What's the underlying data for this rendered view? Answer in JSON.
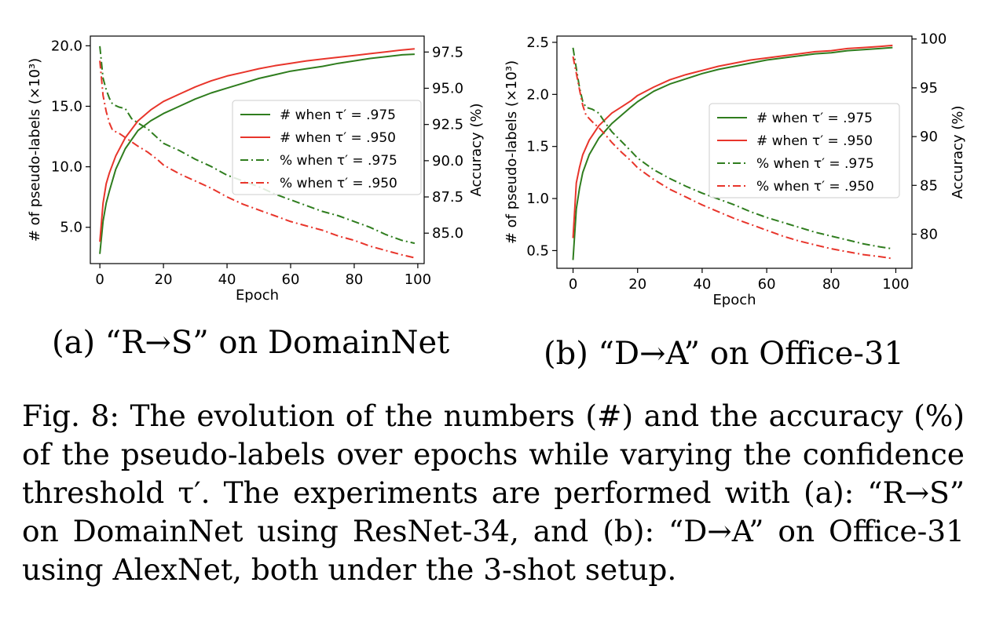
{
  "subcaptions": {
    "a": "(a) “R→S” on DomainNet",
    "b": "(b) “D→A” on Office-31"
  },
  "figure_caption": "Fig. 8: The evolution of the numbers (#) and the accuracy (%) of the pseudo-labels over epochs while varying the confidence threshold τ′. The experiments are performed with (a): “R→S” on DomainNet using ResNet-34, and (b): “D→A” on Office-31 using AlexNet, both under the 3-shot setup.",
  "chart_data": [
    {
      "type": "line",
      "xlabel": "Epoch",
      "ylabel": "# of pseudo-labels (×10³)",
      "y2label": "Accuracy (%)",
      "xlim": [
        -3,
        102
      ],
      "ylim": [
        2.0,
        20.8
      ],
      "y2lim": [
        82.9,
        98.6
      ],
      "xticks": [
        0,
        20,
        40,
        60,
        80,
        100
      ],
      "yticks": [
        5.0,
        10.0,
        15.0,
        20.0
      ],
      "y2ticks": [
        85.0,
        87.5,
        90.0,
        92.5,
        95.0,
        97.5
      ],
      "xtick_labels": [
        "0",
        "20",
        "40",
        "60",
        "80",
        "100"
      ],
      "ytick_labels": [
        "5.0",
        "10.0",
        "15.0",
        "20.0"
      ],
      "y2tick_labels": [
        "85.0",
        "87.5",
        "90.0",
        "92.5",
        "95.0",
        "97.5"
      ],
      "legend_position": "center-right",
      "grid": false,
      "series": [
        {
          "name": "# when τ′ = .975",
          "axis": "left",
          "style": "solid",
          "color": "#2f7d1e",
          "x": [
            0,
            1,
            2,
            3,
            5,
            8,
            12,
            16,
            20,
            25,
            30,
            35,
            40,
            45,
            50,
            55,
            60,
            65,
            70,
            75,
            80,
            85,
            90,
            95,
            99
          ],
          "y": [
            2.8,
            5.5,
            7.0,
            8.0,
            9.8,
            11.5,
            13.0,
            13.8,
            14.4,
            15.0,
            15.6,
            16.1,
            16.5,
            16.9,
            17.3,
            17.6,
            17.9,
            18.1,
            18.3,
            18.55,
            18.75,
            18.95,
            19.1,
            19.25,
            19.3
          ]
        },
        {
          "name": "# when τ′ = .950",
          "axis": "left",
          "style": "solid",
          "color": "#e8352b",
          "x": [
            0,
            1,
            2,
            3,
            5,
            8,
            12,
            16,
            20,
            25,
            30,
            35,
            40,
            45,
            50,
            55,
            60,
            65,
            70,
            75,
            80,
            85,
            90,
            95,
            99
          ],
          "y": [
            3.8,
            7.0,
            8.6,
            9.5,
            10.9,
            12.4,
            13.8,
            14.7,
            15.4,
            16.0,
            16.6,
            17.1,
            17.5,
            17.8,
            18.1,
            18.35,
            18.55,
            18.75,
            18.9,
            19.05,
            19.2,
            19.35,
            19.5,
            19.65,
            19.75
          ]
        },
        {
          "name": "% when τ′ = .975",
          "axis": "right",
          "style": "dashdot",
          "color": "#2f7d1e",
          "x": [
            0,
            1,
            2,
            3,
            4,
            6,
            8,
            10,
            12,
            15,
            18,
            20,
            25,
            30,
            35,
            40,
            45,
            50,
            55,
            60,
            65,
            70,
            75,
            80,
            85,
            90,
            95,
            99
          ],
          "y": [
            97.9,
            95.7,
            94.9,
            94.3,
            93.9,
            93.7,
            93.6,
            92.9,
            92.6,
            92.2,
            91.6,
            91.2,
            90.7,
            90.1,
            89.6,
            89.0,
            88.6,
            88.2,
            87.7,
            87.3,
            86.9,
            86.5,
            86.2,
            85.8,
            85.4,
            84.9,
            84.5,
            84.3
          ]
        },
        {
          "name": "% when τ′ = .950",
          "axis": "right",
          "style": "dashdot",
          "color": "#e8352b",
          "x": [
            0,
            1,
            2,
            3,
            4,
            6,
            8,
            10,
            12,
            15,
            18,
            20,
            25,
            30,
            35,
            40,
            45,
            50,
            55,
            60,
            65,
            70,
            75,
            80,
            85,
            90,
            95,
            99
          ],
          "y": [
            96.9,
            94.5,
            93.4,
            92.6,
            92.1,
            91.9,
            91.6,
            91.3,
            91.0,
            90.6,
            90.1,
            89.7,
            89.1,
            88.6,
            88.1,
            87.5,
            87.0,
            86.6,
            86.2,
            85.8,
            85.5,
            85.2,
            84.8,
            84.5,
            84.1,
            83.8,
            83.5,
            83.3
          ]
        }
      ]
    },
    {
      "type": "line",
      "xlabel": "Epoch",
      "ylabel": "# of pseudo-labels (×10³)",
      "y2label": "Accuracy (%)",
      "xlim": [
        -5,
        105
      ],
      "ylim": [
        0.33,
        2.56
      ],
      "y2lim": [
        76.5,
        100.3
      ],
      "xticks": [
        0,
        20,
        40,
        60,
        80,
        100
      ],
      "yticks": [
        0.5,
        1.0,
        1.5,
        2.0,
        2.5
      ],
      "y2ticks": [
        80,
        85,
        90,
        95,
        100
      ],
      "xtick_labels": [
        "0",
        "20",
        "40",
        "60",
        "80",
        "100"
      ],
      "ytick_labels": [
        "0.5",
        "1.0",
        "1.5",
        "2.0",
        "2.5"
      ],
      "y2tick_labels": [
        "80",
        "85",
        "90",
        "95",
        "100"
      ],
      "legend_position": "center-right",
      "grid": false,
      "series": [
        {
          "name": "# when τ′ = .975",
          "axis": "left",
          "style": "solid",
          "color": "#2f7d1e",
          "x": [
            0,
            1,
            2,
            3,
            5,
            8,
            10,
            12,
            15,
            18,
            20,
            25,
            30,
            35,
            40,
            45,
            50,
            55,
            60,
            65,
            70,
            75,
            80,
            85,
            90,
            95,
            99
          ],
          "y": [
            0.41,
            0.9,
            1.1,
            1.25,
            1.42,
            1.58,
            1.65,
            1.72,
            1.8,
            1.88,
            1.93,
            2.03,
            2.1,
            2.15,
            2.2,
            2.24,
            2.27,
            2.3,
            2.33,
            2.35,
            2.37,
            2.39,
            2.4,
            2.42,
            2.43,
            2.44,
            2.45
          ]
        },
        {
          "name": "# when τ′ = .950",
          "axis": "left",
          "style": "solid",
          "color": "#e8352b",
          "x": [
            0,
            1,
            2,
            3,
            5,
            8,
            10,
            12,
            15,
            18,
            20,
            25,
            30,
            35,
            40,
            45,
            50,
            55,
            60,
            65,
            70,
            75,
            80,
            85,
            90,
            95,
            99
          ],
          "y": [
            0.62,
            1.15,
            1.3,
            1.42,
            1.56,
            1.7,
            1.76,
            1.82,
            1.88,
            1.94,
            1.99,
            2.07,
            2.14,
            2.19,
            2.23,
            2.27,
            2.3,
            2.33,
            2.35,
            2.37,
            2.39,
            2.41,
            2.42,
            2.44,
            2.45,
            2.46,
            2.47
          ]
        },
        {
          "name": "% when τ′ = .975",
          "axis": "right",
          "style": "dashdot",
          "color": "#2f7d1e",
          "x": [
            0,
            1,
            2,
            3,
            4,
            6,
            8,
            10,
            12,
            15,
            18,
            20,
            25,
            30,
            35,
            40,
            45,
            50,
            55,
            60,
            65,
            70,
            75,
            80,
            85,
            90,
            95,
            99
          ],
          "y": [
            99.1,
            97.0,
            95.0,
            93.6,
            93.0,
            92.8,
            92.4,
            91.4,
            90.5,
            89.5,
            88.5,
            87.8,
            86.6,
            85.7,
            84.9,
            84.2,
            83.6,
            83.0,
            82.3,
            81.7,
            81.2,
            80.7,
            80.2,
            79.8,
            79.4,
            79.0,
            78.7,
            78.5
          ]
        },
        {
          "name": "% when τ′ = .950",
          "axis": "right",
          "style": "dashdot",
          "color": "#e8352b",
          "x": [
            0,
            1,
            2,
            3,
            4,
            6,
            8,
            10,
            12,
            15,
            18,
            20,
            25,
            30,
            35,
            40,
            45,
            50,
            55,
            60,
            65,
            70,
            75,
            80,
            85,
            90,
            95,
            99
          ],
          "y": [
            98.2,
            96.5,
            94.8,
            93.2,
            92.2,
            91.5,
            90.9,
            90.2,
            89.4,
            88.4,
            87.5,
            86.8,
            85.6,
            84.6,
            83.8,
            83.0,
            82.3,
            81.6,
            81.0,
            80.4,
            79.8,
            79.3,
            78.9,
            78.5,
            78.2,
            77.9,
            77.7,
            77.5
          ]
        }
      ]
    }
  ]
}
